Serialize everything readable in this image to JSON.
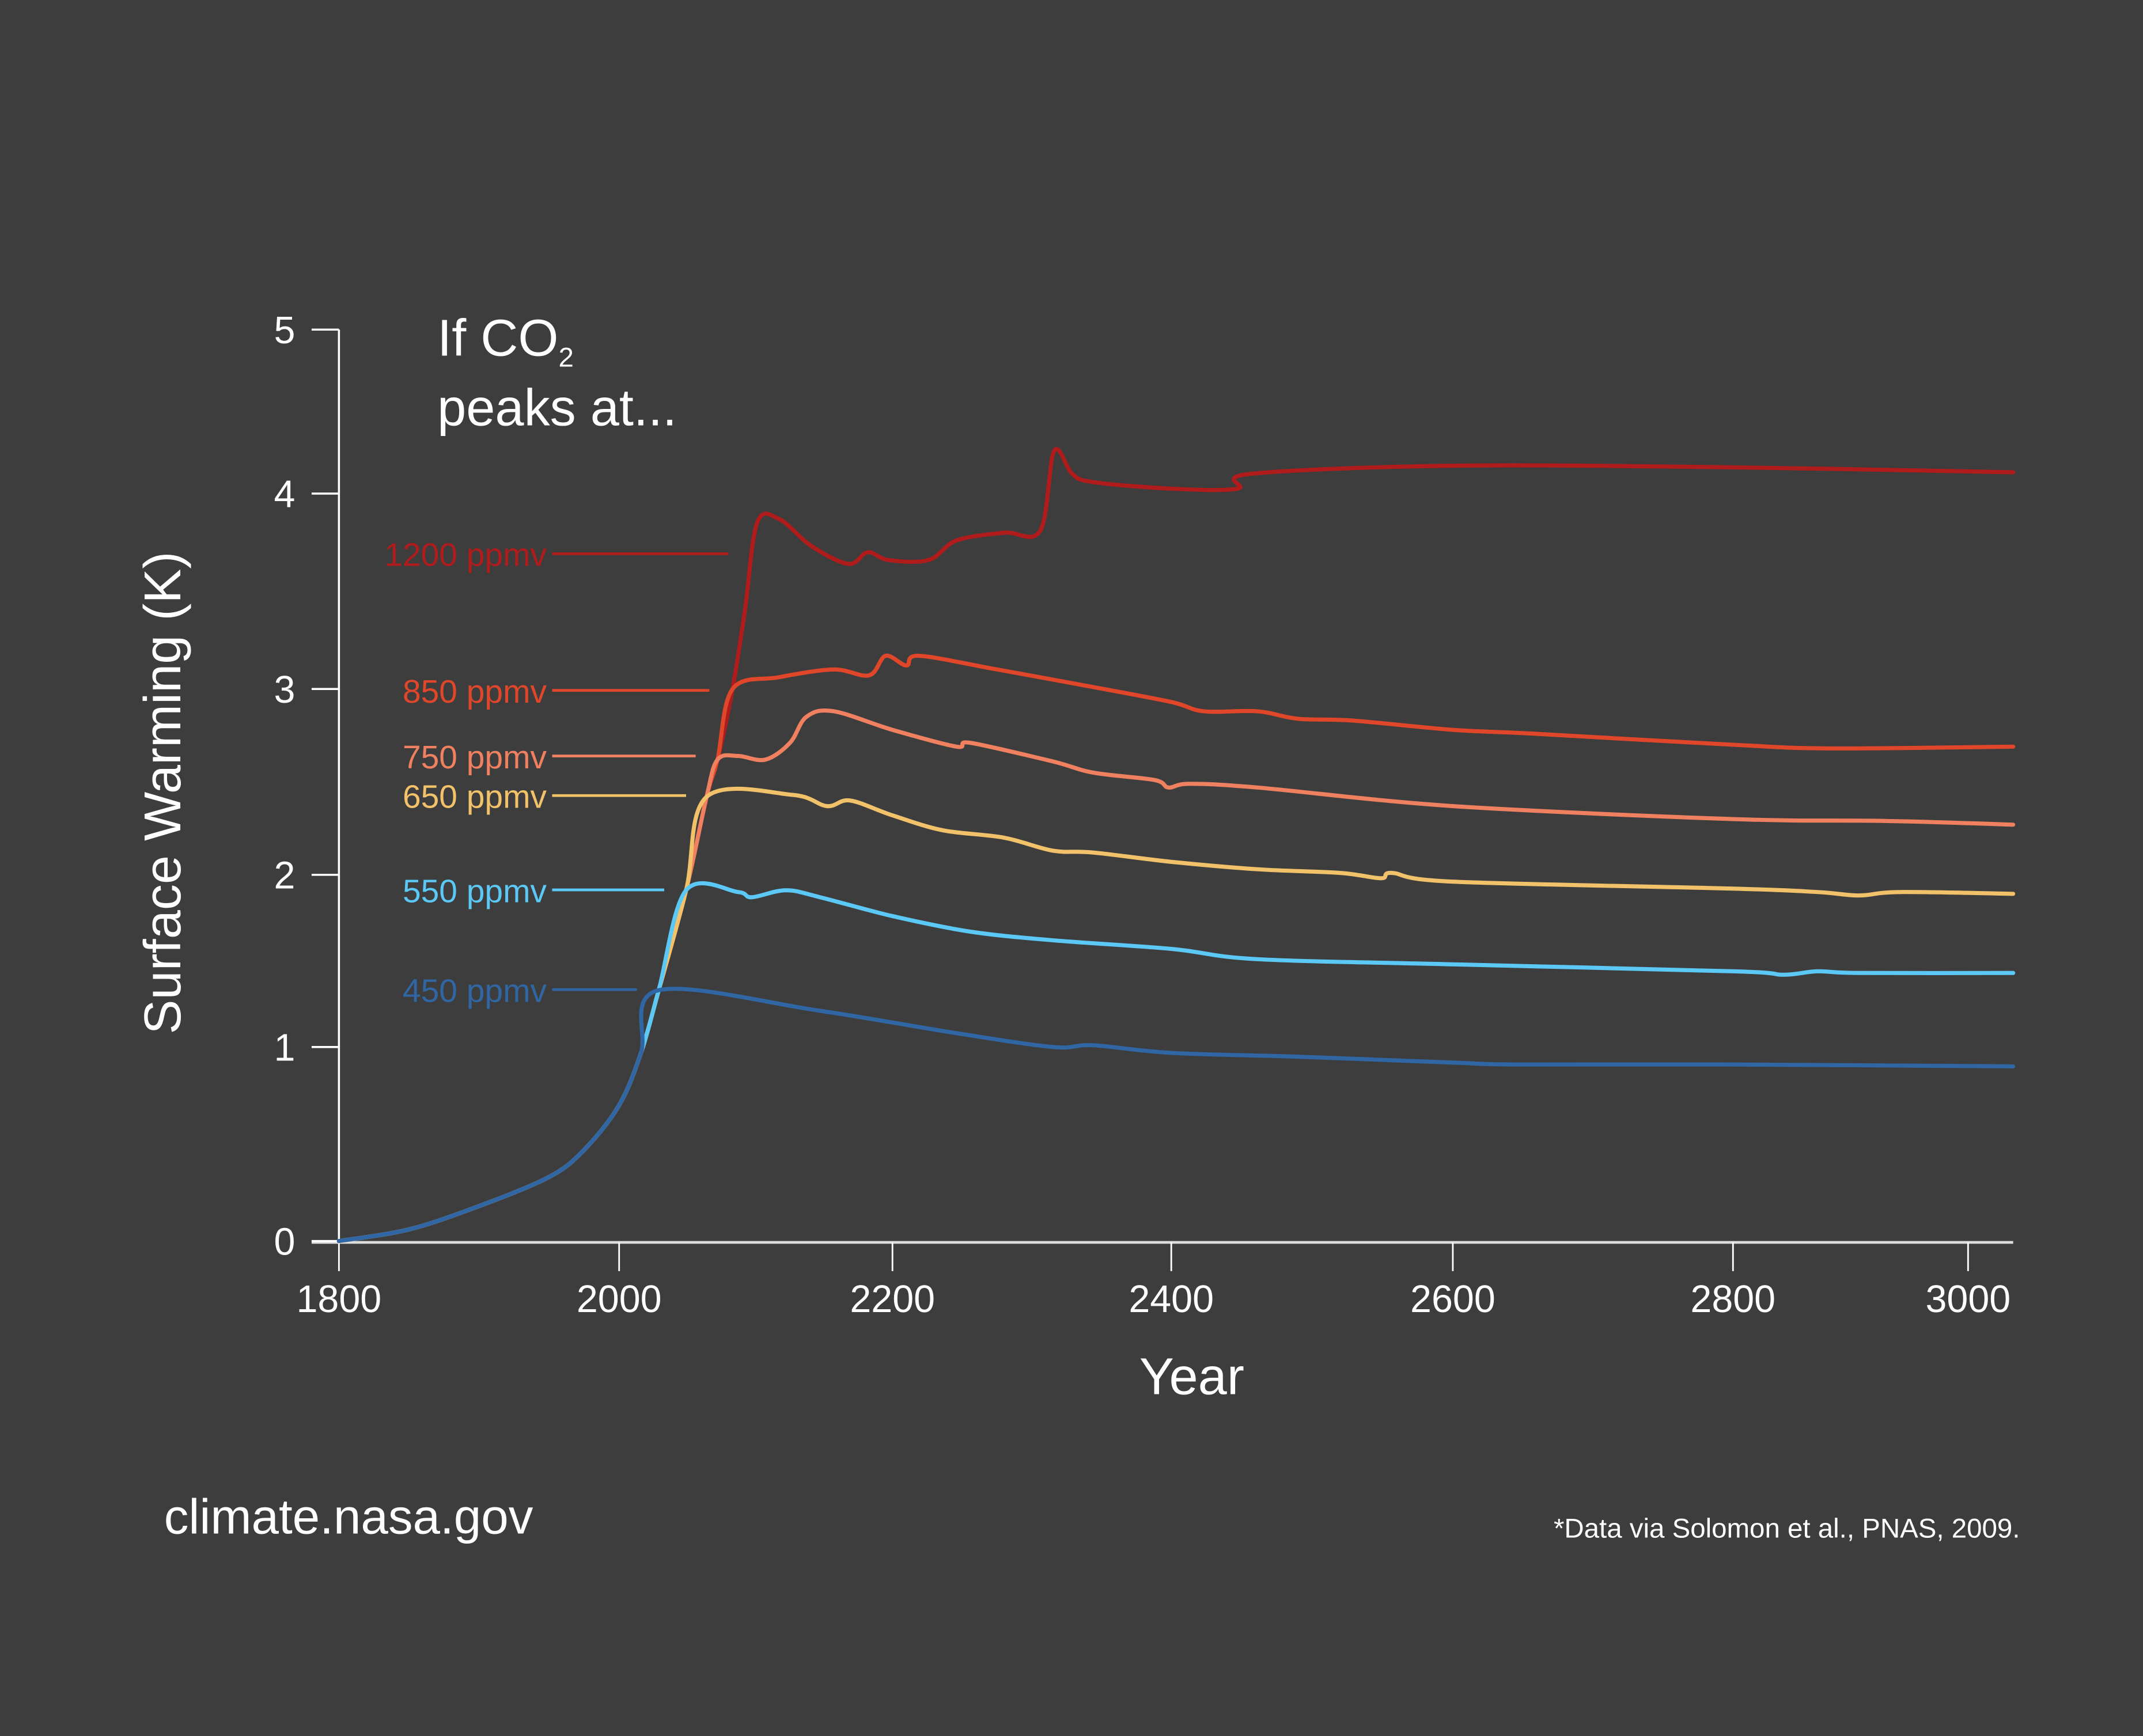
{
  "chart_data": {
    "type": "line",
    "title_line1": "If CO",
    "title_sub": "2",
    "title_line2": "peaks at...",
    "xlabel": "Year",
    "ylabel": "Surface Warming (K)",
    "xlim": [
      1800,
      3038
    ],
    "ylim": [
      0,
      5
    ],
    "x_ticks": [
      "1800",
      "2000",
      "2200",
      "2400",
      "2600",
      "2800",
      "3000"
    ],
    "y_ticks": [
      "0",
      "1",
      "2",
      "3",
      "4",
      "5"
    ],
    "grid": false,
    "legend": "inline labels left of curves",
    "series": [
      {
        "name": "1200 ppmv",
        "color": "#b01c1c",
        "points": [
          [
            1800,
            0
          ],
          [
            1850,
            0.06
          ],
          [
            1900,
            0.18
          ],
          [
            1950,
            0.33
          ],
          [
            1975,
            0.47
          ],
          [
            2000,
            0.7
          ],
          [
            2016,
            0.97
          ],
          [
            2029,
            1.33
          ],
          [
            2049,
            1.91
          ],
          [
            2064,
            2.42
          ],
          [
            2072,
            2.62
          ],
          [
            2083,
            3.0
          ],
          [
            2092,
            3.4
          ],
          [
            2101,
            3.85
          ],
          [
            2117,
            3.87
          ],
          [
            2141,
            3.73
          ],
          [
            2168,
            3.64
          ],
          [
            2182,
            3.7
          ],
          [
            2197,
            3.66
          ],
          [
            2226,
            3.66
          ],
          [
            2246,
            3.76
          ],
          [
            2280,
            3.8
          ],
          [
            2306,
            3.81
          ],
          [
            2316,
            4.26
          ],
          [
            2329,
            4.12
          ],
          [
            2344,
            4.07
          ],
          [
            2400,
            4.03
          ],
          [
            2447,
            4.03
          ],
          [
            2456,
            4.12
          ],
          [
            2600,
            4.17
          ],
          [
            2800,
            4.16
          ],
          [
            3038,
            4.13
          ]
        ]
      },
      {
        "name": "850 ppmv",
        "color": "#e0472a",
        "points": [
          [
            1800,
            0
          ],
          [
            1850,
            0.06
          ],
          [
            1900,
            0.18
          ],
          [
            1950,
            0.33
          ],
          [
            1975,
            0.47
          ],
          [
            2000,
            0.7
          ],
          [
            2016,
            0.97
          ],
          [
            2029,
            1.33
          ],
          [
            2049,
            1.91
          ],
          [
            2064,
            2.42
          ],
          [
            2072,
            2.62
          ],
          [
            2083,
            3.0
          ],
          [
            2117,
            3.06
          ],
          [
            2157,
            3.1
          ],
          [
            2183,
            3.07
          ],
          [
            2195,
            3.17
          ],
          [
            2210,
            3.12
          ],
          [
            2219,
            3.17
          ],
          [
            2275,
            3.1
          ],
          [
            2344,
            3.01
          ],
          [
            2400,
            2.93
          ],
          [
            2423,
            2.88
          ],
          [
            2461,
            2.88
          ],
          [
            2490,
            2.84
          ],
          [
            2529,
            2.83
          ],
          [
            2600,
            2.78
          ],
          [
            2656,
            2.76
          ],
          [
            2800,
            2.7
          ],
          [
            2884,
            2.68
          ],
          [
            3038,
            2.69
          ]
        ]
      },
      {
        "name": "750 ppmv",
        "color": "#ef8060",
        "points": [
          [
            1800,
            0
          ],
          [
            1850,
            0.06
          ],
          [
            1900,
            0.18
          ],
          [
            1950,
            0.33
          ],
          [
            1975,
            0.47
          ],
          [
            2000,
            0.7
          ],
          [
            2016,
            0.97
          ],
          [
            2029,
            1.33
          ],
          [
            2049,
            1.91
          ],
          [
            2064,
            2.42
          ],
          [
            2072,
            2.62
          ],
          [
            2087,
            2.64
          ],
          [
            2107,
            2.62
          ],
          [
            2125,
            2.71
          ],
          [
            2137,
            2.85
          ],
          [
            2157,
            2.88
          ],
          [
            2200,
            2.78
          ],
          [
            2246,
            2.69
          ],
          [
            2256,
            2.71
          ],
          [
            2315,
            2.61
          ],
          [
            2344,
            2.55
          ],
          [
            2388,
            2.51
          ],
          [
            2398,
            2.47
          ],
          [
            2413,
            2.49
          ],
          [
            2461,
            2.47
          ],
          [
            2600,
            2.37
          ],
          [
            2800,
            2.3
          ],
          [
            2931,
            2.29
          ],
          [
            3038,
            2.27
          ]
        ]
      },
      {
        "name": "650 ppmv",
        "color": "#f2c26a",
        "points": [
          [
            1800,
            0
          ],
          [
            1850,
            0.06
          ],
          [
            1900,
            0.18
          ],
          [
            1950,
            0.33
          ],
          [
            1975,
            0.47
          ],
          [
            2000,
            0.7
          ],
          [
            2016,
            0.97
          ],
          [
            2029,
            1.33
          ],
          [
            2049,
            1.91
          ],
          [
            2064,
            2.42
          ],
          [
            2127,
            2.43
          ],
          [
            2152,
            2.37
          ],
          [
            2169,
            2.4
          ],
          [
            2200,
            2.32
          ],
          [
            2236,
            2.24
          ],
          [
            2280,
            2.2
          ],
          [
            2315,
            2.13
          ],
          [
            2344,
            2.12
          ],
          [
            2400,
            2.07
          ],
          [
            2461,
            2.03
          ],
          [
            2520,
            2.01
          ],
          [
            2549,
            1.98
          ],
          [
            2557,
            2.01
          ],
          [
            2600,
            1.96
          ],
          [
            2800,
            1.92
          ],
          [
            2872,
            1.9
          ],
          [
            2907,
            1.88
          ],
          [
            2942,
            1.9
          ],
          [
            3038,
            1.89
          ]
        ]
      },
      {
        "name": "550 ppmv",
        "color": "#5cc8f5",
        "points": [
          [
            1800,
            0
          ],
          [
            1850,
            0.06
          ],
          [
            1900,
            0.18
          ],
          [
            1950,
            0.33
          ],
          [
            1975,
            0.47
          ],
          [
            2000,
            0.7
          ],
          [
            2016,
            0.97
          ],
          [
            2029,
            1.33
          ],
          [
            2049,
            1.91
          ],
          [
            2087,
            1.9
          ],
          [
            2097,
            1.87
          ],
          [
            2122,
            1.91
          ],
          [
            2147,
            1.87
          ],
          [
            2200,
            1.76
          ],
          [
            2256,
            1.67
          ],
          [
            2315,
            1.62
          ],
          [
            2400,
            1.57
          ],
          [
            2461,
            1.51
          ],
          [
            2600,
            1.48
          ],
          [
            2800,
            1.44
          ],
          [
            2843,
            1.42
          ],
          [
            2872,
            1.44
          ],
          [
            2907,
            1.43
          ],
          [
            3038,
            1.43
          ]
        ]
      },
      {
        "name": "450 ppmv",
        "color": "#2f66a3",
        "points": [
          [
            1800,
            0
          ],
          [
            1850,
            0.06
          ],
          [
            1900,
            0.18
          ],
          [
            1950,
            0.33
          ],
          [
            1975,
            0.47
          ],
          [
            2000,
            0.7
          ],
          [
            2016,
            0.97
          ],
          [
            2029,
            1.33
          ],
          [
            2147,
            1.21
          ],
          [
            2246,
            1.08
          ],
          [
            2315,
            1.0
          ],
          [
            2344,
            1.01
          ],
          [
            2400,
            0.97
          ],
          [
            2490,
            0.95
          ],
          [
            2600,
            0.92
          ],
          [
            2646,
            0.91
          ],
          [
            2800,
            0.91
          ],
          [
            3038,
            0.9
          ]
        ]
      }
    ]
  },
  "footer": {
    "site": "climate.nasa.gov",
    "source_note": "*Data via Solomon et al., PNAS, 2009."
  },
  "colors": {
    "background": "#3d3d3d",
    "axis": "#ffffff"
  }
}
